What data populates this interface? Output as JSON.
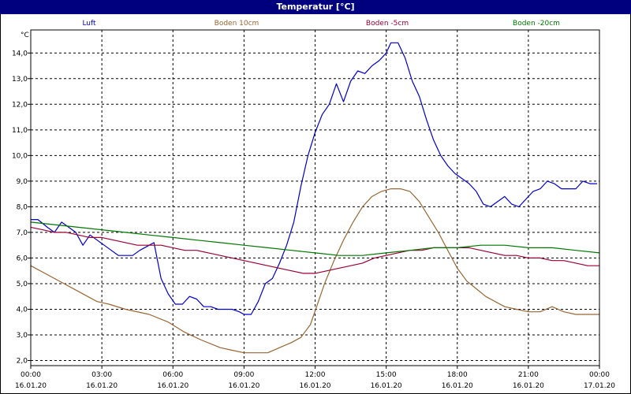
{
  "window": {
    "title": "Temperatur [°C]"
  },
  "chart_data": {
    "type": "line",
    "title": "Temperatur [°C]",
    "ylabel": "°C",
    "xlabel": "",
    "ylim": [
      1.8,
      14.9
    ],
    "xlim": [
      0,
      24
    ],
    "grid": true,
    "legend_placement": "top",
    "y_ticks": [
      {
        "value": 2,
        "label": "2,0"
      },
      {
        "value": 3,
        "label": "3,0"
      },
      {
        "value": 4,
        "label": "4,0"
      },
      {
        "value": 5,
        "label": "5,0"
      },
      {
        "value": 6,
        "label": "6,0"
      },
      {
        "value": 7,
        "label": "7,0"
      },
      {
        "value": 8,
        "label": "8,0"
      },
      {
        "value": 9,
        "label": "9,0"
      },
      {
        "value": 10,
        "label": "10,0"
      },
      {
        "value": 11,
        "label": "11,0"
      },
      {
        "value": 12,
        "label": "12,0"
      },
      {
        "value": 13,
        "label": "13,0"
      },
      {
        "value": 14,
        "label": "14,0"
      }
    ],
    "x_ticks": [
      {
        "value": 0,
        "time": "00:00",
        "date": "16.01.20"
      },
      {
        "value": 3,
        "time": "03:00",
        "date": "16.01.20"
      },
      {
        "value": 6,
        "time": "06:00",
        "date": "16.01.20"
      },
      {
        "value": 9,
        "time": "09:00",
        "date": "16.01.20"
      },
      {
        "value": 12,
        "time": "12:00",
        "date": "16.01.20"
      },
      {
        "value": 15,
        "time": "15:00",
        "date": "16.01.20"
      },
      {
        "value": 18,
        "time": "18:00",
        "date": "16.01.20"
      },
      {
        "value": 21,
        "time": "21:00",
        "date": "16.01.20"
      },
      {
        "value": 24,
        "time": "00:00",
        "date": "17.01.20"
      }
    ],
    "series": [
      {
        "name": "Luft",
        "color": "#0000cc",
        "x": [
          0,
          0.3,
          0.7,
          1.0,
          1.3,
          1.6,
          1.9,
          2.2,
          2.5,
          2.8,
          3.1,
          3.4,
          3.7,
          4.0,
          4.3,
          4.6,
          5.0,
          5.2,
          5.5,
          5.8,
          6.1,
          6.4,
          6.7,
          7.0,
          7.3,
          7.6,
          7.9,
          8.2,
          8.5,
          8.8,
          9.0,
          9.3,
          9.6,
          9.9,
          10.2,
          10.5,
          10.8,
          11.1,
          11.4,
          11.7,
          12.0,
          12.3,
          12.6,
          12.9,
          13.2,
          13.5,
          13.8,
          14.1,
          14.4,
          14.7,
          15.0,
          15.2,
          15.5,
          15.8,
          16.1,
          16.4,
          16.7,
          17.0,
          17.3,
          17.6,
          17.9,
          18.2,
          18.5,
          18.8,
          19.1,
          19.4,
          19.7,
          20.0,
          20.3,
          20.6,
          20.9,
          21.2,
          21.5,
          21.8,
          22.1,
          22.4,
          22.7,
          23.0,
          23.3,
          23.6,
          23.9
        ],
        "values": [
          7.5,
          7.5,
          7.2,
          7.0,
          7.4,
          7.2,
          7.0,
          6.5,
          6.9,
          6.7,
          6.5,
          6.3,
          6.1,
          6.1,
          6.1,
          6.3,
          6.5,
          6.6,
          5.2,
          4.6,
          4.2,
          4.2,
          4.5,
          4.4,
          4.1,
          4.1,
          4.0,
          4.0,
          4.0,
          3.9,
          3.8,
          3.8,
          4.3,
          5.0,
          5.2,
          5.8,
          6.5,
          7.4,
          8.8,
          10.0,
          10.9,
          11.6,
          12.0,
          12.8,
          12.1,
          12.9,
          13.3,
          13.2,
          13.5,
          13.7,
          14.0,
          14.4,
          14.4,
          13.8,
          12.9,
          12.3,
          11.4,
          10.6,
          10.0,
          9.6,
          9.3,
          9.1,
          8.9,
          8.6,
          8.1,
          8.0,
          8.2,
          8.4,
          8.1,
          8.0,
          8.3,
          8.6,
          8.7,
          9.0,
          8.9,
          8.7,
          8.7,
          8.7,
          9.0,
          8.9,
          8.9
        ]
      },
      {
        "name": "Boden 10cm",
        "color": "#996633",
        "x": [
          0,
          1,
          2,
          2.8,
          3.3,
          4,
          5,
          5.8,
          6.5,
          7.2,
          8,
          8.5,
          9.0,
          9.5,
          10.0,
          10.5,
          11.0,
          11.4,
          11.8,
          12.1,
          12.4,
          12.8,
          13.2,
          13.6,
          14.0,
          14.4,
          14.8,
          15.2,
          15.6,
          16.0,
          16.4,
          16.8,
          17.2,
          17.6,
          18.0,
          18.4,
          18.8,
          19.2,
          19.6,
          20.0,
          20.5,
          21.0,
          21.5,
          22.0,
          22.5,
          23.0,
          23.5,
          24.0
        ],
        "values": [
          5.7,
          5.2,
          4.7,
          4.3,
          4.2,
          4.0,
          3.8,
          3.5,
          3.1,
          2.8,
          2.5,
          2.4,
          2.3,
          2.3,
          2.3,
          2.5,
          2.7,
          2.9,
          3.4,
          4.2,
          5.0,
          5.9,
          6.7,
          7.4,
          8.0,
          8.4,
          8.6,
          8.7,
          8.7,
          8.6,
          8.2,
          7.6,
          7.0,
          6.3,
          5.6,
          5.1,
          4.8,
          4.5,
          4.3,
          4.1,
          4.0,
          3.9,
          3.9,
          4.1,
          3.9,
          3.8,
          3.8,
          3.8
        ]
      },
      {
        "name": "Boden -5cm",
        "color": "#990033",
        "x": [
          0,
          0.5,
          1,
          1.5,
          2,
          2.5,
          3,
          3.5,
          4,
          4.5,
          5,
          5.5,
          6,
          6.5,
          7,
          7.5,
          8,
          8.5,
          9,
          9.5,
          10,
          10.5,
          11,
          11.5,
          12,
          12.5,
          13,
          13.5,
          14,
          14.5,
          15,
          15.5,
          16,
          16.5,
          17,
          17.5,
          18,
          18.5,
          19,
          19.5,
          20,
          20.5,
          21,
          21.5,
          22,
          22.5,
          23,
          23.5,
          24
        ],
        "values": [
          7.2,
          7.1,
          7.0,
          7.0,
          6.9,
          6.8,
          6.8,
          6.7,
          6.6,
          6.5,
          6.5,
          6.5,
          6.4,
          6.3,
          6.3,
          6.2,
          6.1,
          6.0,
          5.9,
          5.8,
          5.7,
          5.6,
          5.5,
          5.4,
          5.4,
          5.5,
          5.6,
          5.7,
          5.8,
          6.0,
          6.1,
          6.2,
          6.3,
          6.3,
          6.4,
          6.4,
          6.4,
          6.4,
          6.3,
          6.2,
          6.1,
          6.1,
          6.0,
          6.0,
          5.9,
          5.9,
          5.8,
          5.7,
          5.7
        ]
      },
      {
        "name": "Boden -20cm",
        "color": "#007700",
        "x": [
          0,
          1,
          2,
          3,
          4,
          5,
          6,
          7,
          8,
          9,
          10,
          11,
          12,
          13,
          14,
          15,
          16,
          17,
          18,
          19,
          20,
          21,
          22,
          23,
          24
        ],
        "values": [
          7.4,
          7.3,
          7.2,
          7.1,
          7.0,
          6.9,
          6.8,
          6.7,
          6.6,
          6.5,
          6.4,
          6.3,
          6.2,
          6.1,
          6.1,
          6.2,
          6.3,
          6.4,
          6.4,
          6.5,
          6.5,
          6.4,
          6.4,
          6.3,
          6.2
        ]
      }
    ]
  }
}
